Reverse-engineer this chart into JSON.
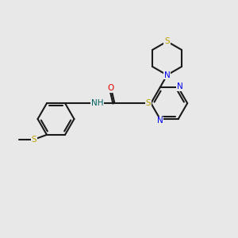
{
  "background_color": "#e8e8e8",
  "bond_color": "#1a1a1a",
  "atom_colors": {
    "S": "#b8a000",
    "N": "#0000ee",
    "O": "#dd0000",
    "NH": "#006060",
    "C": "#1a1a1a"
  },
  "figsize": [
    3.0,
    3.0
  ],
  "dpi": 100
}
